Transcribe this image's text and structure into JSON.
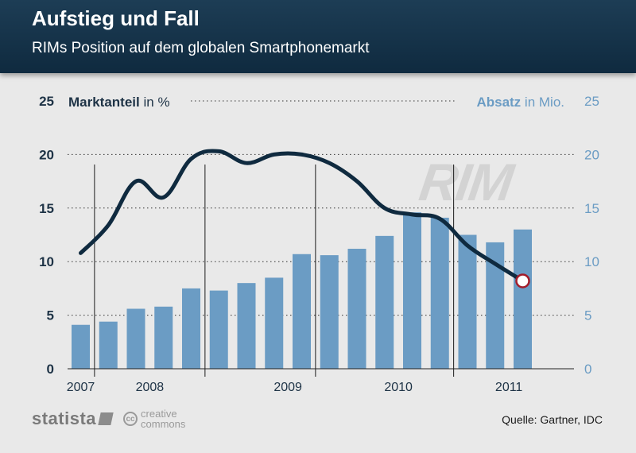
{
  "header": {
    "title": "Aufstieg und Fall",
    "subtitle": "RIMs Position auf dem globalen Smartphonemarkt"
  },
  "footer": {
    "brand": "statista",
    "license_top": "creative",
    "license_bottom": "commons",
    "license_icon": "cc",
    "source": "Quelle: Gartner, IDC"
  },
  "watermark": "RIM",
  "colors": {
    "bars": "#6b9cc4",
    "line": "#0f2a3f",
    "header_bg": "#16344c",
    "marker_fill": "#ffffff",
    "marker_stroke": "#a31c2a"
  },
  "chart_data": {
    "type": "bar+line",
    "left_axis": {
      "label_bold": "Marktanteil",
      "label_unit": "in %",
      "ticks": [
        "0",
        "5",
        "10",
        "15",
        "20",
        "25"
      ],
      "range": [
        0,
        25
      ]
    },
    "right_axis": {
      "label_bold": "Absatz",
      "label_unit": "in Mio.",
      "ticks": [
        "0",
        "5",
        "10",
        "15",
        "20",
        "25"
      ],
      "range": [
        0,
        25
      ]
    },
    "x_labels": [
      "2007",
      "2008",
      "2009",
      "2010",
      "2011"
    ],
    "grid": true,
    "series": [
      {
        "kind": "bar",
        "axis": "right",
        "values": [
          4.1,
          4.4,
          5.6,
          5.8,
          7.5,
          7.3,
          8.0,
          8.5,
          10.7,
          10.6,
          11.2,
          12.4,
          14.6,
          14.1,
          12.5,
          11.8,
          13.0
        ]
      },
      {
        "kind": "line",
        "axis": "left",
        "values": [
          10.8,
          13.4,
          17.5,
          16.0,
          19.6,
          20.3,
          19.2,
          20.0,
          20.0,
          19.2,
          17.5,
          15.0,
          14.4,
          14.0,
          11.5,
          9.8,
          8.2
        ]
      }
    ]
  }
}
